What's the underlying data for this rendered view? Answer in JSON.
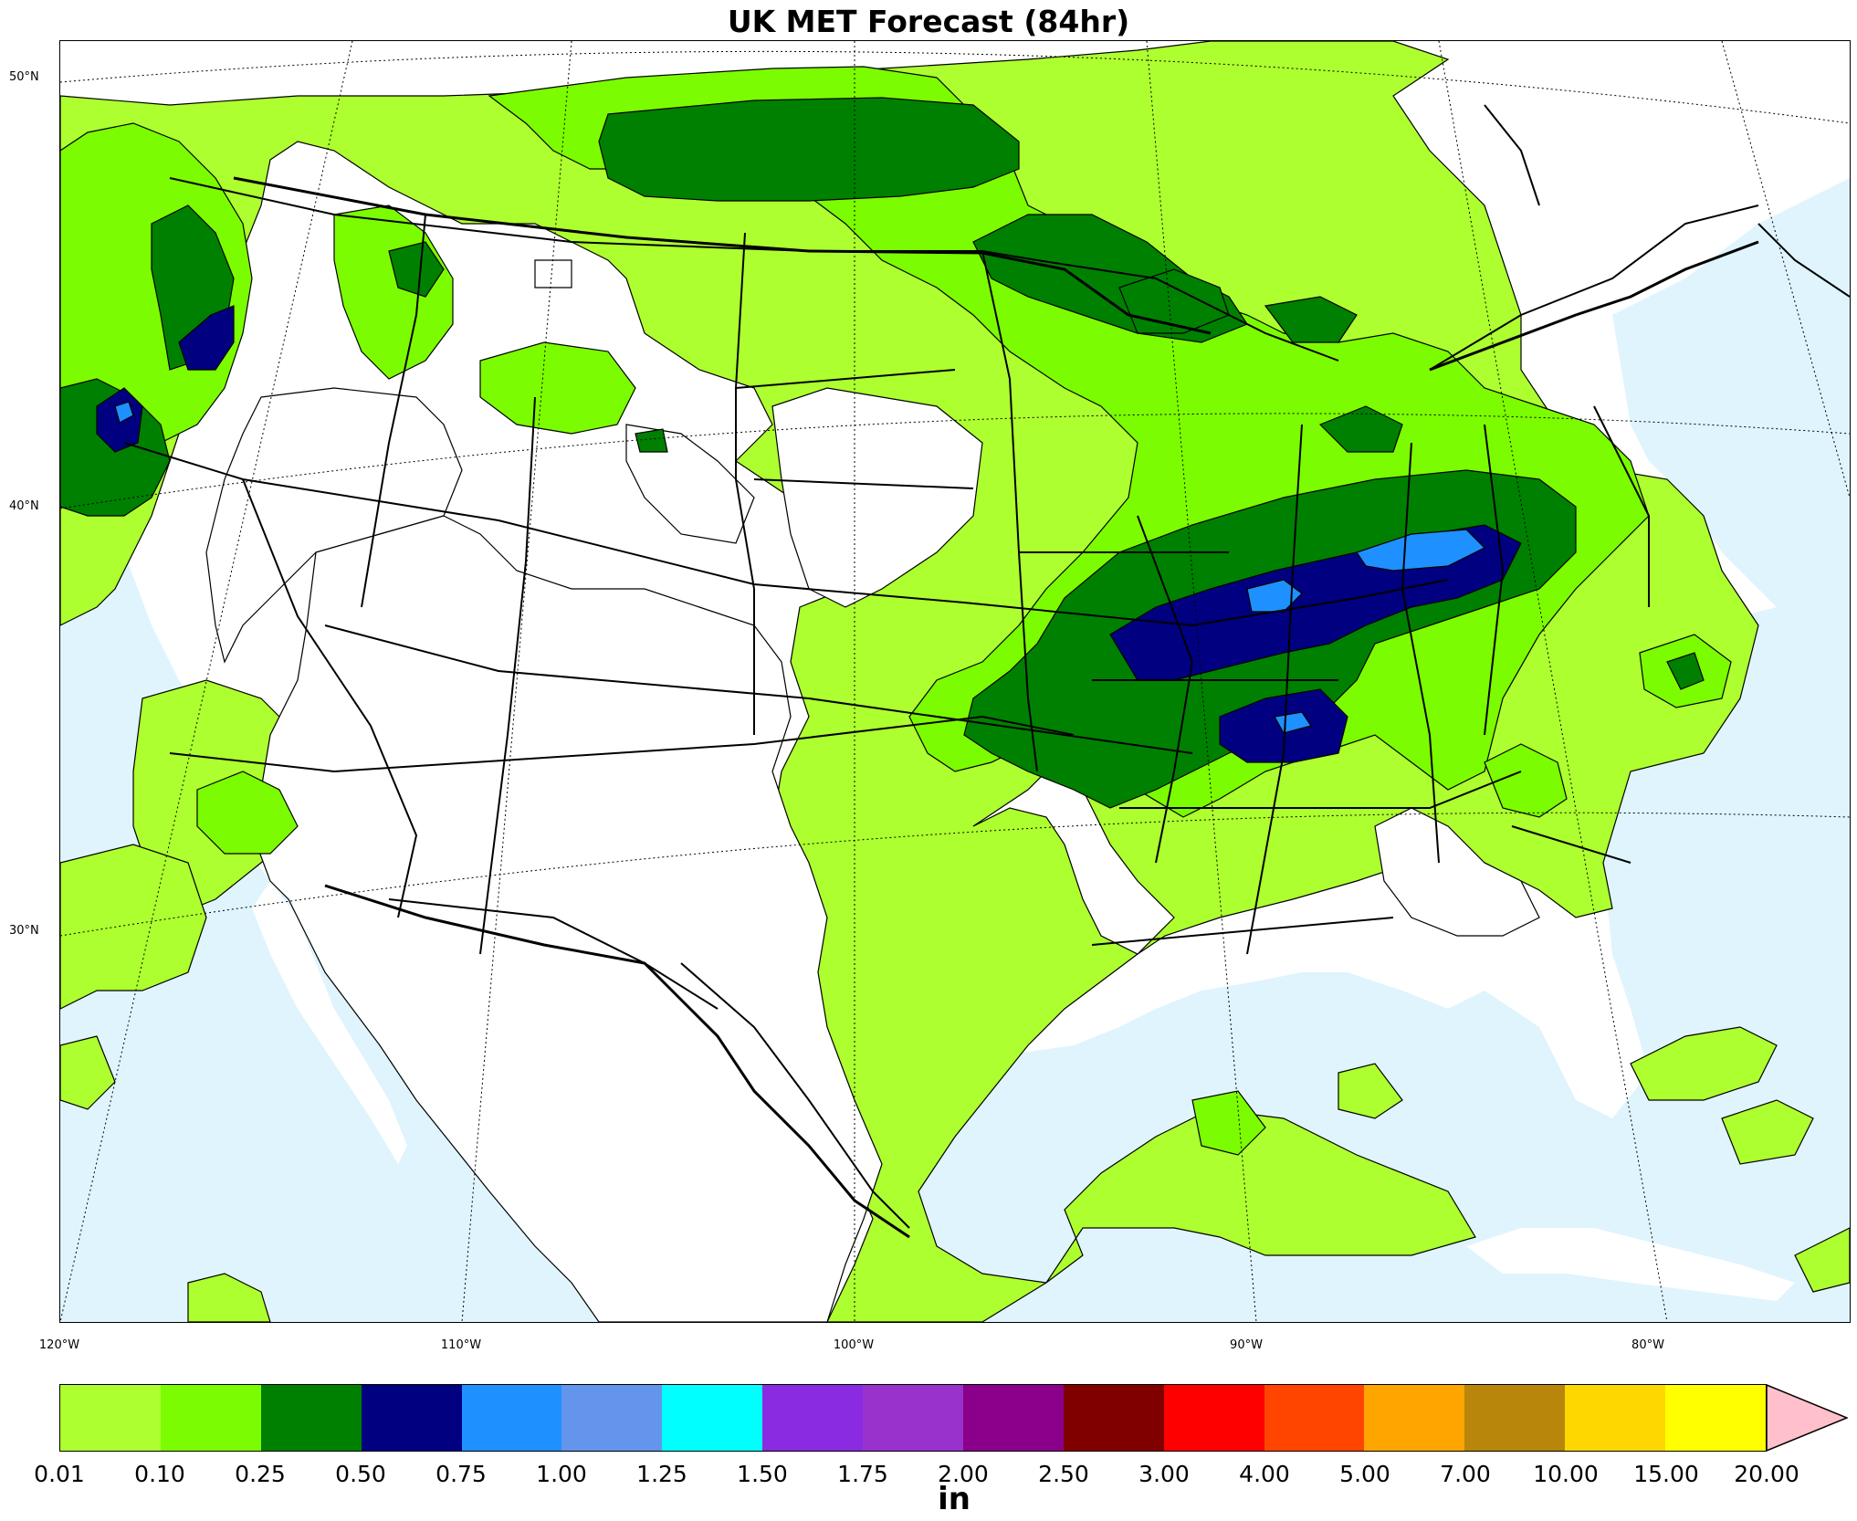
{
  "title": "UK MET Forecast (84hr)",
  "lat_labels": [
    "50°N",
    "40°N",
    "30°N"
  ],
  "lon_labels": [
    "120°W",
    "110°W",
    "100°W",
    "90°W",
    "80°W"
  ],
  "colors": {
    "ocean": "#dff4fd",
    "land": "#ffffff",
    "c001": "#adff2f",
    "c010": "#7cfc00",
    "c025": "#008000",
    "c050": "#000080",
    "c075": "#1e90ff",
    "arrow": "#ffc0cb"
  },
  "colorbar": {
    "units": "in",
    "ticks": [
      "0.01",
      "0.10",
      "0.25",
      "0.50",
      "0.75",
      "1.00",
      "1.25",
      "1.50",
      "1.75",
      "2.00",
      "2.50",
      "3.00",
      "4.00",
      "5.00",
      "7.00",
      "10.00",
      "15.00",
      "20.00"
    ],
    "colors": [
      "#adff2f",
      "#7cfc00",
      "#008000",
      "#000080",
      "#1e90ff",
      "#6495ed",
      "#00ffff",
      "#8a2be2",
      "#9932cc",
      "#8b008b",
      "#800000",
      "#ff0000",
      "#ff4500",
      "#ffa500",
      "#b8860b",
      "#ffd700",
      "#ffff00"
    ],
    "extend_color": "#ffc0cb"
  }
}
